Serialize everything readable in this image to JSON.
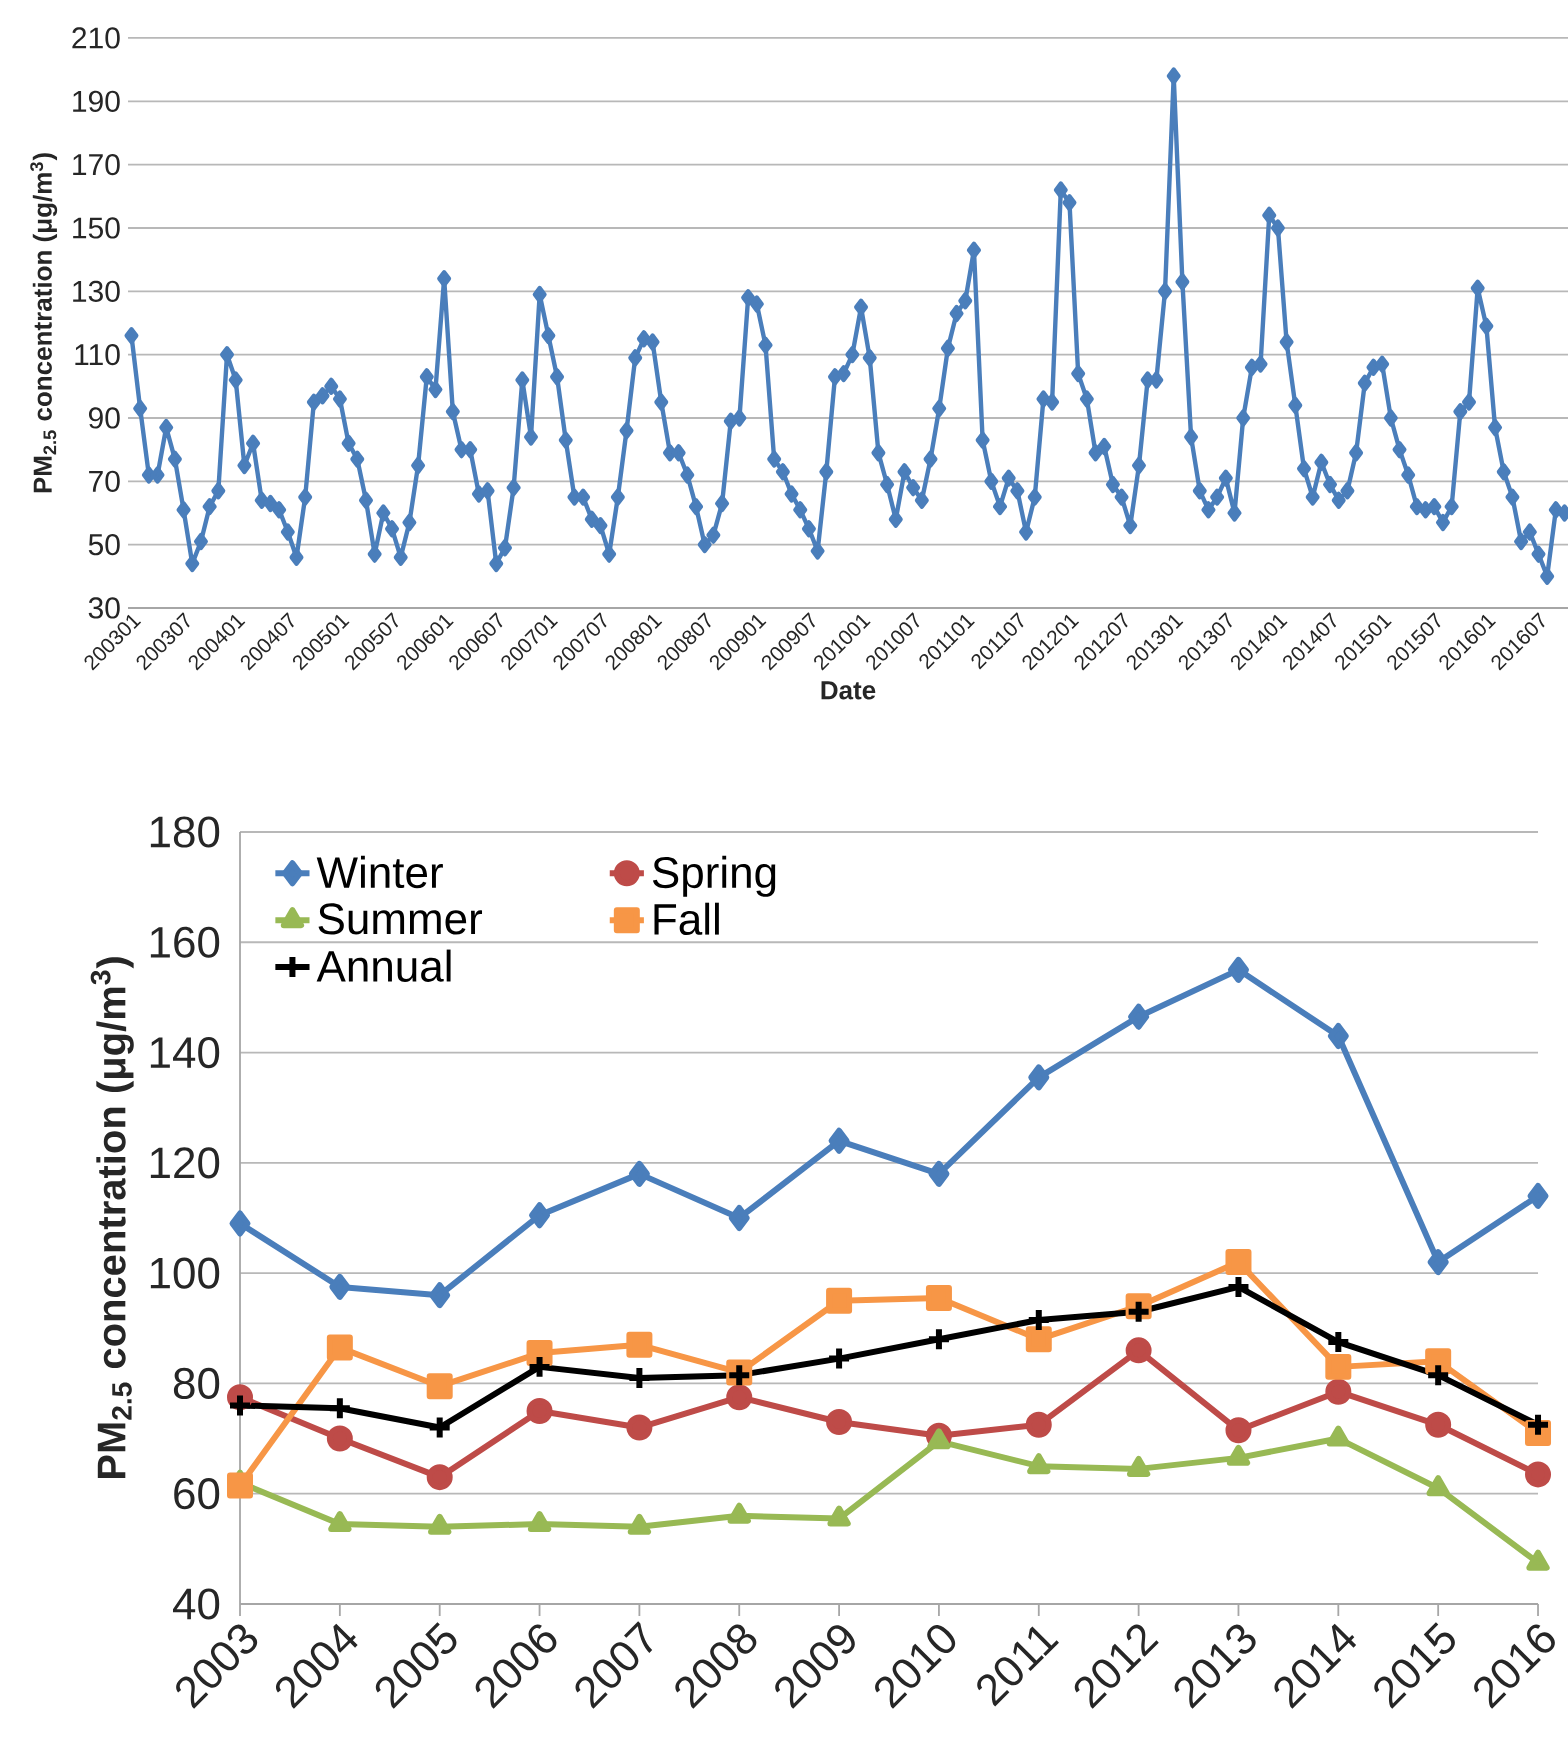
{
  "chart_data": [
    {
      "type": "line",
      "xlabel": "Date",
      "ylabel": "**PM$_{2.5}$ concentration (μg/m$^{3}$)**",
      "categories": [
        "200301",
        null,
        null,
        null,
        null,
        null,
        "200307",
        null,
        null,
        null,
        null,
        null,
        "200401",
        null,
        null,
        null,
        null,
        null,
        "200407",
        null,
        null,
        null,
        null,
        null,
        "200501",
        null,
        null,
        null,
        null,
        null,
        "200507",
        null,
        null,
        null,
        null,
        null,
        "200601",
        null,
        null,
        null,
        null,
        null,
        "200607",
        null,
        null,
        null,
        null,
        null,
        "200701",
        null,
        null,
        null,
        null,
        null,
        "200707",
        null,
        null,
        null,
        null,
        null,
        "200801",
        null,
        null,
        null,
        null,
        null,
        "200807",
        null,
        null,
        null,
        null,
        null,
        "200901",
        null,
        null,
        null,
        null,
        null,
        "200907",
        null,
        null,
        null,
        null,
        null,
        "201001",
        null,
        null,
        null,
        null,
        null,
        "201007",
        null,
        null,
        null,
        null,
        null,
        "201101",
        null,
        null,
        null,
        null,
        null,
        "201107",
        null,
        null,
        null,
        null,
        null,
        "201201",
        null,
        null,
        null,
        null,
        null,
        "201207",
        null,
        null,
        null,
        null,
        null,
        "201301",
        null,
        null,
        null,
        null,
        null,
        "201307",
        null,
        null,
        null,
        null,
        null,
        "201401",
        null,
        null,
        null,
        null,
        null,
        "201407",
        null,
        null,
        null,
        null,
        null,
        "201501",
        null,
        null,
        null,
        null,
        null,
        "201507",
        null,
        null,
        null,
        null,
        null,
        "201601",
        null,
        null,
        null,
        null,
        null,
        "201607",
        null,
        null,
        null
      ],
      "series": [
        {
          "color": "#4a7ebb",
          "values": [
            116,
            93,
            72,
            72,
            87,
            77,
            61,
            44,
            51,
            62,
            67,
            110,
            102,
            75,
            82,
            64,
            63,
            61,
            54,
            46,
            65,
            95,
            97,
            100,
            96,
            82,
            77,
            64,
            47,
            60,
            55,
            46,
            57,
            75,
            103,
            99,
            134,
            92,
            80,
            80,
            66,
            67,
            44,
            49,
            68,
            102,
            84,
            129,
            116,
            103,
            83,
            65,
            65,
            58,
            56,
            47,
            65,
            86,
            109,
            115,
            114,
            95,
            79,
            79,
            72,
            62,
            50,
            53,
            63,
            89,
            90,
            128,
            126,
            113,
            77,
            73,
            66,
            61,
            55,
            48,
            73,
            103,
            104,
            110,
            125,
            109,
            79,
            69,
            58,
            73,
            68,
            64,
            77,
            93,
            112,
            123,
            127,
            143,
            83,
            70,
            62,
            71,
            67,
            54,
            65,
            96,
            95,
            162,
            158,
            104,
            96,
            79,
            81,
            69,
            65,
            56,
            75,
            102,
            102,
            130,
            198,
            133,
            84,
            67,
            61,
            65,
            71,
            60,
            90,
            106,
            107,
            154,
            150,
            114,
            94,
            74,
            65,
            76,
            69,
            64,
            67,
            79,
            101,
            106,
            107,
            90,
            80,
            72,
            62,
            61,
            62,
            57,
            62,
            92,
            95,
            131,
            119,
            87,
            73,
            65,
            51,
            54,
            47,
            40,
            61,
            60
          ]
        }
      ],
      "ylim": [
        30,
        210
      ],
      "yticks": [
        30,
        50,
        70,
        90,
        110,
        130,
        150,
        170,
        190,
        210
      ],
      "grid": "y",
      "marker": "diamond"
    },
    {
      "type": "line",
      "ylabel": "**PM$_{2.5}$ concentration (μg/m$^{3}$)**",
      "categories": [
        "2003",
        "2004",
        "2005",
        "2006",
        "2007",
        "2008",
        "2009",
        "2010",
        "2011",
        "2012",
        "2013",
        "2014",
        "2015",
        "2016"
      ],
      "series": [
        {
          "name": "Winter",
          "color": "#4a7ebb",
          "marker": "diamond",
          "values": [
            109,
            97.5,
            96,
            110.5,
            118,
            110,
            124,
            118,
            135.5,
            146.5,
            155,
            143,
            102,
            114
          ]
        },
        {
          "name": "Spring",
          "color": "#be4b48",
          "marker": "circle",
          "values": [
            77.5,
            70,
            63,
            75,
            72,
            77.5,
            73,
            70.5,
            72.5,
            86,
            71.5,
            78.5,
            72.5,
            63.5
          ]
        },
        {
          "name": "Summer",
          "color": "#98b954",
          "marker": "triangle",
          "values": [
            62,
            54.5,
            54,
            54.5,
            54,
            56,
            55.5,
            69.5,
            65,
            64.5,
            66.5,
            70,
            61,
            47.5
          ]
        },
        {
          "name": "Fall",
          "color": "#f79646",
          "marker": "square",
          "values": [
            61.5,
            86.5,
            79.5,
            85.5,
            87,
            82,
            95,
            95.5,
            88,
            94,
            102,
            83,
            84,
            71
          ]
        },
        {
          "name": "Annual",
          "color": "#000000",
          "marker": "cross",
          "values": [
            76,
            75.5,
            72,
            83,
            81,
            81.5,
            84.5,
            88,
            91.5,
            93,
            97.5,
            87.5,
            81.5,
            72.5
          ]
        }
      ],
      "ylim": [
        40,
        180
      ],
      "yticks": [
        40,
        60,
        80,
        100,
        120,
        140,
        160,
        180
      ],
      "grid": "y",
      "legend": "top left"
    }
  ]
}
